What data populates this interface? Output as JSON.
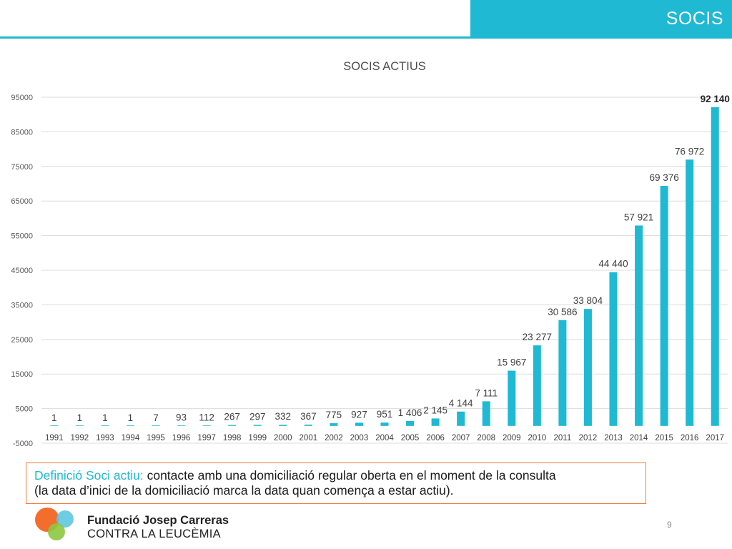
{
  "header": {
    "title": "SOCIS"
  },
  "definition": {
    "term": "Definició Soci actiu:",
    "text_line1": " contacte amb una domiciliació regular oberta en el moment de la consulta",
    "text_line2": "(la data d’inici de la domiciliació marca la data quan comença a estar actiu)."
  },
  "footer": {
    "brand_name": "Fundació Josep Carreras",
    "brand_subtitle": "CONTRA LA LEUCÈMIA",
    "page_number": "9"
  },
  "colors": {
    "accent": "#1fb9d3",
    "border_orange": "#f07b3a"
  },
  "chart_data": {
    "type": "bar",
    "title": "SOCIS ACTIUS",
    "xlabel": "",
    "ylabel": "",
    "categories": [
      "1991",
      "1992",
      "1993",
      "1994",
      "1995",
      "1996",
      "1997",
      "1998",
      "1999",
      "2000",
      "2001",
      "2002",
      "2003",
      "2004",
      "2005",
      "2006",
      "2007",
      "2008",
      "2009",
      "2010",
      "2011",
      "2012",
      "2013",
      "2014",
      "2015",
      "2016",
      "2017"
    ],
    "values": [
      1,
      1,
      1,
      1,
      7,
      93,
      112,
      267,
      297,
      332,
      367,
      775,
      927,
      951,
      1406,
      2145,
      4144,
      7111,
      15967,
      23277,
      30586,
      33804,
      44440,
      57921,
      69376,
      76972,
      92140
    ],
    "data_labels": [
      "1",
      "1",
      "1",
      "1",
      "7",
      "93",
      "112",
      "267",
      "297",
      "332",
      "367",
      "775",
      "927",
      "951",
      "1 406",
      "2 145",
      "4 144",
      "7 111",
      "15 967",
      "23 277",
      "30 586",
      "33 804",
      "44 440",
      "57 921",
      "69 376",
      "76 972",
      "92 140"
    ],
    "y_ticks": [
      -5000,
      5000,
      15000,
      25000,
      35000,
      45000,
      55000,
      65000,
      75000,
      85000,
      95000
    ],
    "ylim": [
      -5000,
      95000
    ],
    "grid": true,
    "legend": "none",
    "bar_color": "#1fb9d3",
    "last_label_bold": true
  }
}
